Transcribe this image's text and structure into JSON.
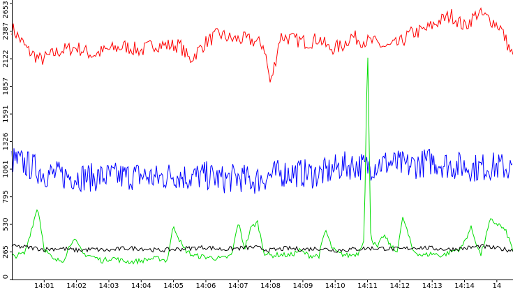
{
  "chart_data": {
    "type": "line",
    "title": "",
    "xlabel": "",
    "ylabel": "",
    "ylim": [
      0,
      2653
    ],
    "y_ticks": [
      "0",
      "265",
      "530",
      "795",
      "1061",
      "1326",
      "1591",
      "1857",
      "2122",
      "2387",
      "2653"
    ],
    "x_ticks": [
      "14:01",
      "14:02",
      "14:03",
      "14:04",
      "14:05",
      "14:06",
      "14:07",
      "14:08",
      "14:09",
      "14:10",
      "14:11",
      "14:12",
      "14:13",
      "14:14",
      "14"
    ],
    "x_range_minutes": [
      0,
      15.5
    ],
    "grid": false,
    "legend": "none",
    "series": [
      {
        "color": "#ff0000",
        "t": [
          0,
          0.5,
          0.9,
          1.5,
          2.0,
          2.5,
          3.0,
          3.5,
          4.0,
          4.4,
          4.8,
          5.2,
          5.5,
          6.0,
          6.4,
          6.8,
          7.2,
          7.5,
          7.8,
          8.0,
          8.3,
          8.8,
          9.2,
          9.5,
          9.8,
          10.2,
          10.5,
          10.8,
          11.2,
          11.6,
          12.0,
          12.3,
          12.8,
          13.2,
          13.6,
          14.0,
          14.4,
          14.8,
          15.1,
          15.5
        ],
        "y": [
          2420,
          2200,
          2110,
          2200,
          2230,
          2160,
          2210,
          2240,
          2200,
          2260,
          2250,
          2250,
          2110,
          2280,
          2360,
          2310,
          2310,
          2290,
          2250,
          1870,
          2340,
          2300,
          2280,
          2320,
          2220,
          2240,
          2340,
          2300,
          2280,
          2230,
          2270,
          2360,
          2400,
          2480,
          2540,
          2430,
          2560,
          2500,
          2430,
          2140
        ]
      },
      {
        "color": "#0000ff",
        "t": [
          0,
          0.6,
          1.0,
          1.5,
          2.0,
          2.5,
          3.0,
          3.5,
          4.0,
          4.5,
          5.0,
          5.5,
          6.0,
          6.5,
          7.0,
          7.5,
          8.0,
          8.5,
          9.0,
          9.5,
          9.8,
          10.2,
          10.6,
          11.0,
          11.3,
          11.7,
          12.2,
          12.6,
          13.0,
          13.5,
          14.0,
          14.4,
          14.8,
          15.2,
          15.5
        ],
        "y": [
          1150,
          1090,
          1020,
          1000,
          990,
          980,
          990,
          990,
          1000,
          970,
          1010,
          980,
          1000,
          960,
          980,
          950,
          1000,
          1030,
          1020,
          1010,
          1040,
          1090,
          1100,
          1080,
          1110,
          1120,
          1090,
          1110,
          1140,
          1100,
          1090,
          1070,
          1090,
          1080,
          1060
        ]
      },
      {
        "color": "#00dd00",
        "t": [
          0,
          0.4,
          0.6,
          0.8,
          1.0,
          1.3,
          1.6,
          1.9,
          2.2,
          2.5,
          2.8,
          3.1,
          3.4,
          3.7,
          4.0,
          4.3,
          4.6,
          4.8,
          5.0,
          5.3,
          5.6,
          5.9,
          6.2,
          6.5,
          6.8,
          7.0,
          7.2,
          7.4,
          7.6,
          7.8,
          8.0,
          8.3,
          8.6,
          8.9,
          9.2,
          9.5,
          9.7,
          9.9,
          10.1,
          10.4,
          10.7,
          10.9,
          11.0,
          11.1,
          11.3,
          11.5,
          11.7,
          11.9,
          12.1,
          12.4,
          12.7,
          13.0,
          13.3,
          13.6,
          13.9,
          14.2,
          14.5,
          14.8,
          15.1,
          15.3,
          15.5
        ],
        "y": [
          220,
          250,
          480,
          700,
          300,
          180,
          190,
          400,
          250,
          220,
          180,
          210,
          180,
          170,
          180,
          200,
          200,
          180,
          520,
          300,
          230,
          220,
          210,
          200,
          230,
          550,
          300,
          500,
          550,
          260,
          230,
          240,
          230,
          280,
          230,
          230,
          480,
          300,
          250,
          230,
          250,
          400,
          2300,
          400,
          300,
          430,
          330,
          260,
          600,
          280,
          230,
          250,
          230,
          270,
          300,
          500,
          230,
          570,
          520,
          450,
          280
        ]
      },
      {
        "color": "#000000",
        "t": [
          0,
          0.5,
          1.0,
          1.5,
          2.0,
          2.5,
          3.0,
          3.5,
          4.0,
          4.5,
          5.0,
          5.5,
          6.0,
          6.5,
          7.0,
          7.5,
          8.0,
          8.5,
          9.0,
          9.5,
          10.0,
          10.5,
          11.0,
          11.5,
          12.0,
          12.5,
          13.0,
          13.5,
          14.0,
          14.5,
          15.0,
          15.5
        ],
        "y": [
          320,
          310,
          290,
          300,
          280,
          290,
          280,
          300,
          300,
          280,
          290,
          300,
          310,
          290,
          300,
          310,
          280,
          300,
          290,
          300,
          280,
          290,
          300,
          300,
          290,
          310,
          300,
          290,
          300,
          320,
          300,
          280
        ]
      }
    ]
  }
}
